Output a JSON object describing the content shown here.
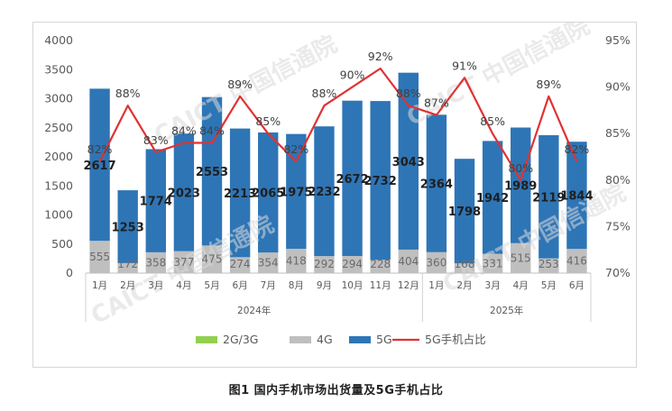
{
  "caption": "图1   国内手机市场出货量及5G手机占比",
  "watermark": "CAICT 中国信通院",
  "colors": {
    "bar5g": "#2e75b6",
    "bar4g": "#bfbfbf",
    "bar23g": "#92d050",
    "line": "#e03232",
    "axis_text": "#595959",
    "grid": "#e3e3e3",
    "label_5g": "#1f1f1f",
    "label_4g": "#6b6b6b",
    "label_pct": "#404040"
  },
  "chart_data": {
    "type": "bar",
    "stacked": true,
    "secondary_type": "line",
    "categories": [
      "1月",
      "2月",
      "3月",
      "4月",
      "5月",
      "6月",
      "7月",
      "8月",
      "9月",
      "10月",
      "11月",
      "12月",
      "1月",
      "2月",
      "3月",
      "4月",
      "5月",
      "6月"
    ],
    "year_groups": [
      {
        "label": "2024年",
        "count": 12
      },
      {
        "label": "2025年",
        "count": 6
      }
    ],
    "series": [
      {
        "name": "2G/3G",
        "values": [
          0,
          0,
          0,
          0,
          0,
          0,
          0,
          0,
          0,
          0,
          0,
          0,
          0,
          0,
          0,
          0,
          0,
          0
        ]
      },
      {
        "name": "4G",
        "values": [
          555,
          172,
          358,
          377,
          475,
          274,
          354,
          418,
          292,
          294,
          228,
          404,
          360,
          168,
          331,
          515,
          253,
          416
        ]
      },
      {
        "name": "5G",
        "values": [
          2617,
          1253,
          1774,
          2023,
          2553,
          2213,
          2065,
          1975,
          2232,
          2672,
          2732,
          3043,
          2364,
          1798,
          1942,
          1989,
          2119,
          1844
        ]
      }
    ],
    "line_series": {
      "name": "5G手机占比",
      "values": [
        82,
        88,
        83,
        84,
        84,
        89,
        85,
        82,
        88,
        90,
        92,
        88,
        87,
        91,
        85,
        80,
        89,
        82
      ],
      "labels": [
        "82%",
        "88%",
        "83%",
        "84%",
        "84%",
        "89%",
        "85%",
        "82%",
        "88%",
        "90%",
        "92%",
        "88%",
        "87%",
        "91%",
        "85%",
        "80%",
        "89%",
        "82%"
      ]
    },
    "ylim": [
      0,
      4000
    ],
    "yticks": [
      "0",
      "500",
      "1000",
      "1500",
      "2000",
      "2500",
      "3000",
      "3500",
      "4000"
    ],
    "y2lim": [
      70,
      95
    ],
    "y2ticks": [
      "70%",
      "75%",
      "80%",
      "85%",
      "90%",
      "95%"
    ],
    "legend": [
      "2G/3G",
      "4G",
      "5G",
      "5G手机占比"
    ],
    "legend_position": "bottom",
    "grid": false
  }
}
